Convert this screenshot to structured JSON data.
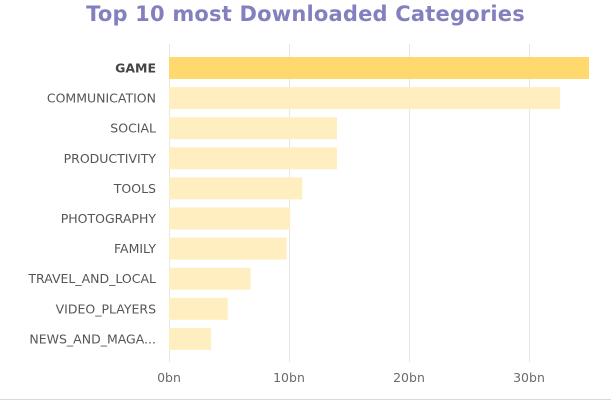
{
  "chart_data": {
    "type": "bar",
    "orientation": "horizontal",
    "title": "Top 10 most Downloaded Categories",
    "categories": [
      "GAME",
      "COMMUNICATION",
      "SOCIAL",
      "PRODUCTIVITY",
      "TOOLS",
      "PHOTOGRAPHY",
      "FAMILY",
      "TRAVEL_AND_LOCAL",
      "VIDEO_PLAYERS",
      "NEWS_AND_MAGA..."
    ],
    "values": [
      35.0,
      32.6,
      14.0,
      14.0,
      11.1,
      10.1,
      9.8,
      6.8,
      4.9,
      3.5
    ],
    "value_unit": "bn",
    "xlim": [
      0,
      35.0
    ],
    "xticks": [
      0,
      10,
      20,
      30
    ],
    "xtick_labels": [
      "0bn",
      "10bn",
      "20bn",
      "30bn"
    ],
    "highlighted_category": "GAME",
    "grid": true,
    "colors": {
      "title": "#8480bf",
      "bar": "#ffeec0",
      "bar_highlight": "#ffd86e"
    }
  }
}
